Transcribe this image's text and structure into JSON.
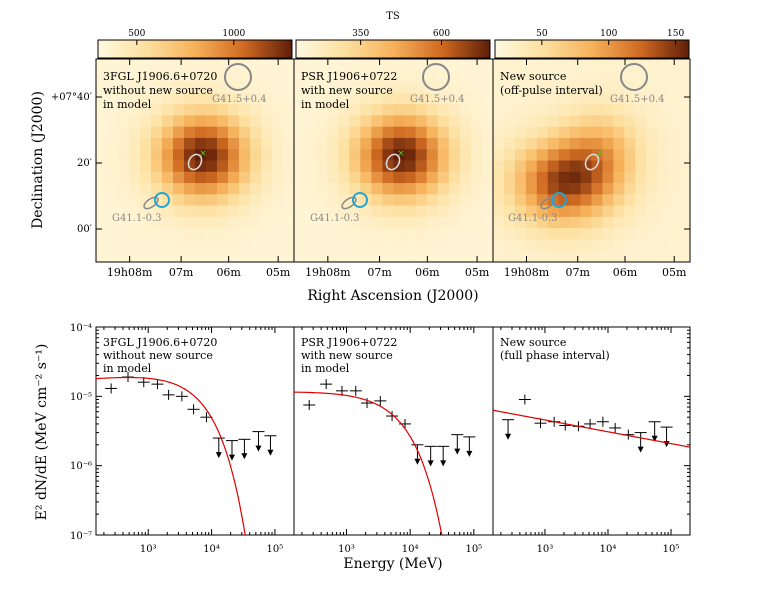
{
  "colorbar_title": "TS",
  "colorbars": [
    {
      "ticks": [
        "500",
        "1000"
      ],
      "tick_values": [
        500,
        1000
      ],
      "range": [
        300,
        1300
      ]
    },
    {
      "ticks": [
        "350",
        "600"
      ],
      "tick_values": [
        350,
        600
      ],
      "range": [
        150,
        750
      ]
    },
    {
      "ticks": [
        "50",
        "100",
        "150"
      ],
      "tick_values": [
        50,
        100,
        150
      ],
      "range": [
        15,
        160
      ]
    }
  ],
  "maps": {
    "ylabel": "Declination (J2000)",
    "xlabel": "Right Ascension (J2000)",
    "y_ticks": [
      "+07°40′",
      "20′",
      "00′"
    ],
    "x_ticks": [
      "19h08m",
      "07m",
      "06m",
      "05m"
    ],
    "panels": [
      {
        "lines": [
          "3FGL J1906.6+0720",
          "without new source",
          "in model"
        ],
        "snr_top": "G41.5+0.4",
        "snr_bottom": "G41.1-0.3",
        "peak": "center"
      },
      {
        "lines": [
          "PSR J1906+0722",
          "with new source",
          "in model"
        ],
        "snr_top": "G41.5+0.4",
        "snr_bottom": "G41.1-0.3",
        "peak": "center"
      },
      {
        "lines": [
          "New source",
          "(off-pulse interval)"
        ],
        "snr_top": "G41.5+0.4",
        "snr_bottom": "G41.1-0.3",
        "peak": "lower-left"
      }
    ]
  },
  "chart_data": {
    "type": "scatter",
    "title": "",
    "xlabel": "Energy (MeV)",
    "ylabel": "E² dN/dE  (MeV cm⁻² s⁻¹)",
    "xlim": [
      150,
      200000
    ],
    "ylim": [
      1e-07,
      0.0001
    ],
    "x_ticks": [
      "10³",
      "10⁴",
      "10⁵"
    ],
    "y_ticks": [
      "10⁻⁴",
      "10⁻⁵",
      "10⁻⁶",
      "10⁻⁷"
    ],
    "panels": [
      {
        "lines": [
          "3FGL J1906.6+0720",
          "without new source",
          "in model"
        ],
        "points": [
          [
            260,
            1.3e-05
          ],
          [
            480,
            1.9e-05
          ],
          [
            850,
            1.6e-05
          ],
          [
            1400,
            1.5e-05
          ],
          [
            2100,
            1.05e-05
          ],
          [
            3400,
            1e-05
          ],
          [
            5200,
            6.5e-06
          ],
          [
            8300,
            5e-06
          ]
        ],
        "upper_limits": [
          [
            13000,
            2.5e-06
          ],
          [
            21000,
            2.3e-06
          ],
          [
            33000,
            2.4e-06
          ],
          [
            55000,
            3.1e-06
          ],
          [
            85000,
            2.7e-06
          ]
        ],
        "model": {
          "kind": "cutoff",
          "norm": 1.8e-05,
          "index": 0.08,
          "cutoff": 6000,
          "b": 1
        }
      },
      {
        "lines": [
          "PSR J1906+0722",
          "with new source",
          "in model"
        ],
        "points": [
          [
            260,
            7.5e-06
          ],
          [
            480,
            1.5e-05
          ],
          [
            850,
            1.2e-05
          ],
          [
            1400,
            1.2e-05
          ],
          [
            2100,
            8e-06
          ],
          [
            3400,
            8.6e-06
          ],
          [
            5200,
            5.2e-06
          ],
          [
            8300,
            4e-06
          ]
        ],
        "upper_limits": [
          [
            13000,
            2e-06
          ],
          [
            21000,
            1.9e-06
          ],
          [
            33000,
            1.9e-06
          ],
          [
            55000,
            2.8e-06
          ],
          [
            85000,
            2.6e-06
          ]
        ],
        "model": {
          "kind": "cutoff",
          "norm": 1.15e-05,
          "index": 0.01,
          "cutoff": 6500,
          "b": 1
        }
      },
      {
        "lines": [
          "New source",
          "(full phase interval)"
        ],
        "points": [
          [
            480,
            9e-06
          ],
          [
            850,
            4.1e-06
          ],
          [
            1400,
            4.3e-06
          ],
          [
            2100,
            3.8e-06
          ],
          [
            3400,
            3.7e-06
          ],
          [
            5200,
            4e-06
          ],
          [
            8300,
            4.3e-06
          ],
          [
            13000,
            3.5e-06
          ],
          [
            21000,
            2.8e-06
          ]
        ],
        "upper_limits": [
          [
            260,
            4.6e-06
          ],
          [
            33000,
            3e-06
          ],
          [
            55000,
            4.3e-06
          ],
          [
            85000,
            3.6e-06
          ]
        ],
        "model": {
          "kind": "powerlaw",
          "y_at_150": 6.3e-06,
          "y_at_200000": 1.85e-06
        }
      }
    ]
  }
}
